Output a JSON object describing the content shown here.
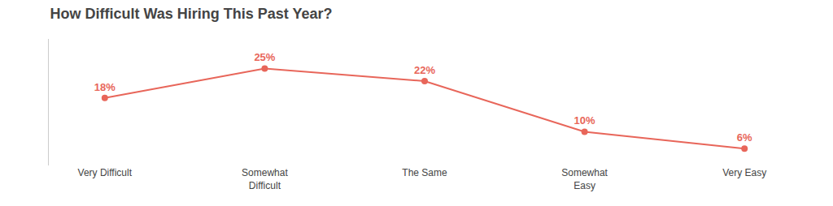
{
  "chart_data": {
    "type": "line",
    "title": "How Difficult Was Hiring This Past Year?",
    "categories": [
      "Very Difficult",
      "Somewhat\nDifficult",
      "The Same",
      "Somewhat\nEasy",
      "Very Easy"
    ],
    "values": [
      18,
      25,
      22,
      10,
      6
    ],
    "value_labels": [
      "18%",
      "25%",
      "22%",
      "10%",
      "6%"
    ],
    "color": "#e8665a",
    "marker": "circle",
    "ylim": [
      2,
      32
    ],
    "grid": false,
    "data_labels": true,
    "tick_labels": "x"
  }
}
